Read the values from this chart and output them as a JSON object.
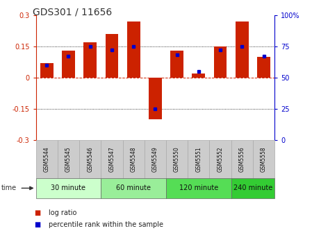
{
  "title": "GDS301 / 11656",
  "samples": [
    "GSM5544",
    "GSM5545",
    "GSM5546",
    "GSM5547",
    "GSM5548",
    "GSM5549",
    "GSM5550",
    "GSM5551",
    "GSM5552",
    "GSM5556",
    "GSM5558"
  ],
  "log_ratio": [
    0.07,
    0.13,
    0.17,
    0.21,
    0.27,
    -0.2,
    0.13,
    0.02,
    0.15,
    0.27,
    0.1
  ],
  "percentile": [
    60,
    67,
    75,
    72,
    75,
    25,
    68,
    55,
    72,
    75,
    67
  ],
  "groups": [
    {
      "label": "30 minute",
      "indices": [
        0,
        1,
        2
      ],
      "color": "#ccffcc"
    },
    {
      "label": "60 minute",
      "indices": [
        3,
        4,
        5
      ],
      "color": "#99ee99"
    },
    {
      "label": "120 minute",
      "indices": [
        6,
        7,
        8
      ],
      "color": "#55dd55"
    },
    {
      "label": "240 minute",
      "indices": [
        9,
        10
      ],
      "color": "#33cc33"
    }
  ],
  "bar_color": "#cc2200",
  "pct_color": "#0000cc",
  "ylim_left": [
    -0.3,
    0.3
  ],
  "ylim_right": [
    0,
    100
  ],
  "yticks_left": [
    -0.3,
    -0.15,
    0.0,
    0.15,
    0.3
  ],
  "ytick_labels_left": [
    "-0.3",
    "-0.15",
    "0",
    "0.15",
    "0.3"
  ],
  "yticks_right": [
    0,
    25,
    50,
    75,
    100
  ],
  "ytick_labels_right": [
    "0",
    "25",
    "50",
    "75",
    "100%"
  ],
  "legend_labels": [
    "log ratio",
    "percentile rank within the sample"
  ],
  "time_label": "time",
  "sample_bg": "#cccccc",
  "sample_border": "#aaaaaa",
  "figwidth": 4.49,
  "figheight": 3.36,
  "dpi": 100
}
